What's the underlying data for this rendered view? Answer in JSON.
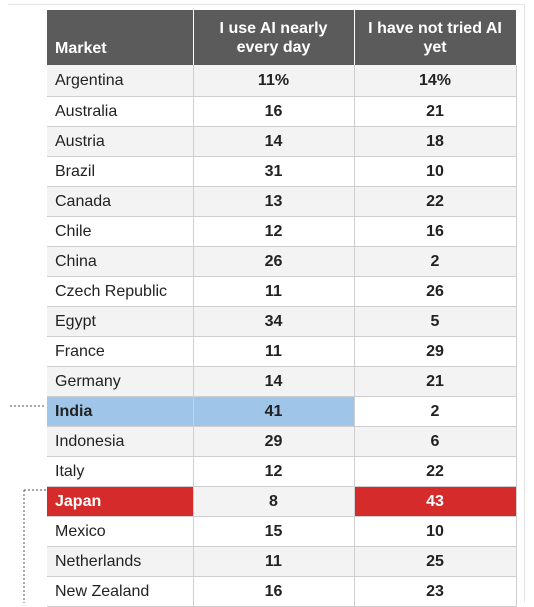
{
  "table": {
    "header": [
      "Market",
      "I use AI nearly every day",
      "I have not tried AI yet"
    ],
    "rows": [
      [
        "Argentina",
        "11%",
        "14%"
      ],
      [
        "Australia",
        "16",
        "21"
      ],
      [
        "Austria",
        "14",
        "18"
      ],
      [
        "Brazil",
        "31",
        "10"
      ],
      [
        "Canada",
        "13",
        "22"
      ],
      [
        "Chile",
        "12",
        "16"
      ],
      [
        "China",
        "26",
        "2"
      ],
      [
        "Czech Republic",
        "11",
        "26"
      ],
      [
        "Egypt",
        "34",
        "5"
      ],
      [
        "France",
        "11",
        "29"
      ],
      [
        "Germany",
        "14",
        "21"
      ],
      [
        "India",
        "41",
        "2"
      ],
      [
        "Indonesia",
        "29",
        "6"
      ],
      [
        "Italy",
        "12",
        "22"
      ],
      [
        "Japan",
        "8",
        "43"
      ],
      [
        "Mexico",
        "15",
        "10"
      ],
      [
        "Netherlands",
        "11",
        "25"
      ],
      [
        "New Zealand",
        "16",
        "23"
      ]
    ]
  }
}
